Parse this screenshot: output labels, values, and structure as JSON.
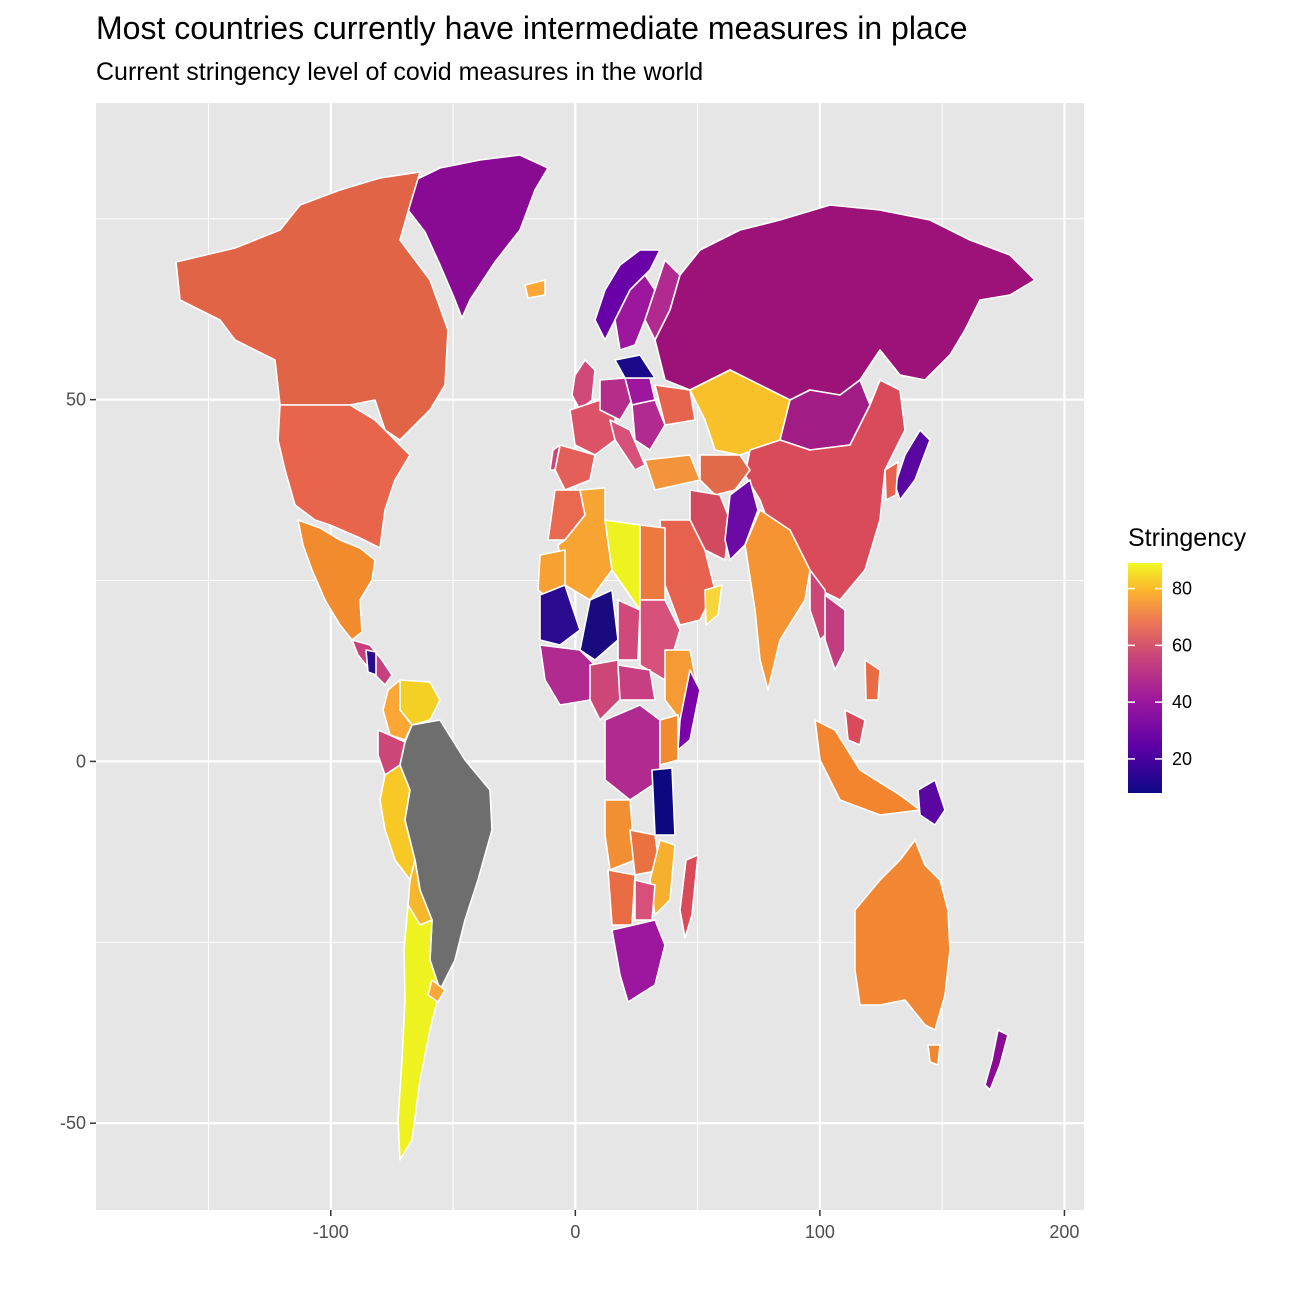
{
  "title": "Most countries currently have intermediate measures in place",
  "subtitle": "Current stringency level of covid measures in the world",
  "chart_data": {
    "type": "choropleth",
    "title": "Most countries currently have intermediate measures in place",
    "subtitle": "Current stringency level of covid measures in the world",
    "x_axis": {
      "label": "",
      "range": [
        -196,
        208
      ],
      "ticks": [
        -100,
        0,
        100,
        200
      ],
      "tick_labels": [
        "-100",
        "0",
        "100",
        "200"
      ]
    },
    "y_axis": {
      "label": "",
      "range": [
        -62,
        91
      ],
      "ticks": [
        -50,
        0,
        50
      ],
      "tick_labels": [
        "-50",
        "0",
        "50"
      ]
    },
    "legend": {
      "title": "Stringency",
      "range": [
        8,
        89
      ],
      "ticks": [
        20,
        40,
        60,
        80
      ],
      "tick_labels": [
        "20",
        "40",
        "60",
        "80"
      ],
      "colors": [
        "#0d0887",
        "#6a00a8",
        "#b12a90",
        "#e16462",
        "#fca636",
        "#f0f921"
      ],
      "position": "right"
    },
    "regions": [
      {
        "name": "Canada",
        "value": 62
      },
      {
        "name": "United States",
        "value": 62
      },
      {
        "name": "Mexico",
        "value": 72
      },
      {
        "name": "Greenland",
        "value": 38
      },
      {
        "name": "Brazil",
        "value": null
      },
      {
        "name": "Argentina",
        "value": 89
      },
      {
        "name": "Chile",
        "value": 89
      },
      {
        "name": "Peru",
        "value": 80
      },
      {
        "name": "Russia",
        "value": 44
      },
      {
        "name": "Kazakhstan",
        "value": 80
      },
      {
        "name": "China",
        "value": 55
      },
      {
        "name": "India",
        "value": 70
      },
      {
        "name": "Australia",
        "value": 66
      },
      {
        "name": "Libya",
        "value": 88
      },
      {
        "name": "Algeria",
        "value": 75
      },
      {
        "name": "Niger",
        "value": 10
      },
      {
        "name": "Tanzania",
        "value": 8
      },
      {
        "name": "South Africa",
        "value": 40
      },
      {
        "name": "Madagascar",
        "value": 55
      }
    ]
  }
}
